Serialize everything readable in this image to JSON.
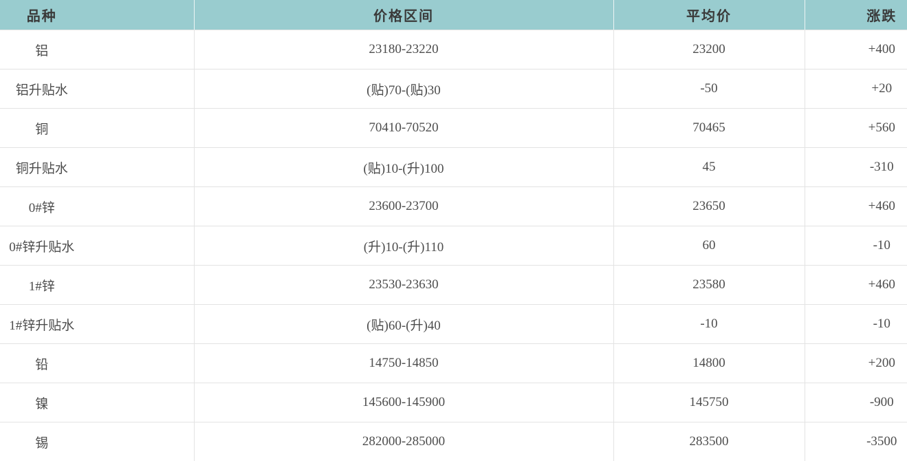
{
  "colors": {
    "header_bg": "#99cccf",
    "header_text": "#3a3a3a",
    "body_text": "#4d4d4d",
    "border": "#e3e3e3"
  },
  "table": {
    "headers": {
      "variety": "品种",
      "range": "价格区间",
      "average": "平均价",
      "change": "涨跌"
    },
    "rows": [
      {
        "variety": "铝",
        "range": "23180-23220",
        "average": "23200",
        "change": "+400"
      },
      {
        "variety": "铝升贴水",
        "range": "(贴)70-(贴)30",
        "average": "-50",
        "change": "+20"
      },
      {
        "variety": "铜",
        "range": "70410-70520",
        "average": "70465",
        "change": "+560"
      },
      {
        "variety": "铜升贴水",
        "range": "(贴)10-(升)100",
        "average": "45",
        "change": "-310"
      },
      {
        "variety": "0#锌",
        "range": "23600-23700",
        "average": "23650",
        "change": "+460"
      },
      {
        "variety": "0#锌升贴水",
        "range": "(升)10-(升)110",
        "average": "60",
        "change": "-10"
      },
      {
        "variety": "1#锌",
        "range": "23530-23630",
        "average": "23580",
        "change": "+460"
      },
      {
        "variety": "1#锌升贴水",
        "range": "(贴)60-(升)40",
        "average": "-10",
        "change": "-10"
      },
      {
        "variety": "铅",
        "range": "14750-14850",
        "average": "14800",
        "change": "+200"
      },
      {
        "variety": "镍",
        "range": "145600-145900",
        "average": "145750",
        "change": "-900"
      },
      {
        "variety": "锡",
        "range": "282000-285000",
        "average": "283500",
        "change": "-3500"
      }
    ]
  },
  "chart_data": {
    "type": "table",
    "columns": [
      "品种",
      "价格区间",
      "平均价",
      "涨跌"
    ],
    "rows": [
      [
        "铝",
        "23180-23220",
        "23200",
        "+400"
      ],
      [
        "铝升贴水",
        "(贴)70-(贴)30",
        "-50",
        "+20"
      ],
      [
        "铜",
        "70410-70520",
        "70465",
        "+560"
      ],
      [
        "铜升贴水",
        "(贴)10-(升)100",
        "45",
        "-310"
      ],
      [
        "0#锌",
        "23600-23700",
        "23650",
        "+460"
      ],
      [
        "0#锌升贴水",
        "(升)10-(升)110",
        "60",
        "-10"
      ],
      [
        "1#锌",
        "23530-23630",
        "23580",
        "+460"
      ],
      [
        "1#锌升贴水",
        "(贴)60-(升)40",
        "-10",
        "-10"
      ],
      [
        "铅",
        "14750-14850",
        "14800",
        "+200"
      ],
      [
        "镍",
        "145600-145900",
        "145750",
        "-900"
      ],
      [
        "锡",
        "282000-285000",
        "283500",
        "-3500"
      ]
    ],
    "layout": {
      "header_background": "#99cccf",
      "grid": "light-gray 1px lines",
      "last_row_clipped_by_viewport": true
    }
  }
}
